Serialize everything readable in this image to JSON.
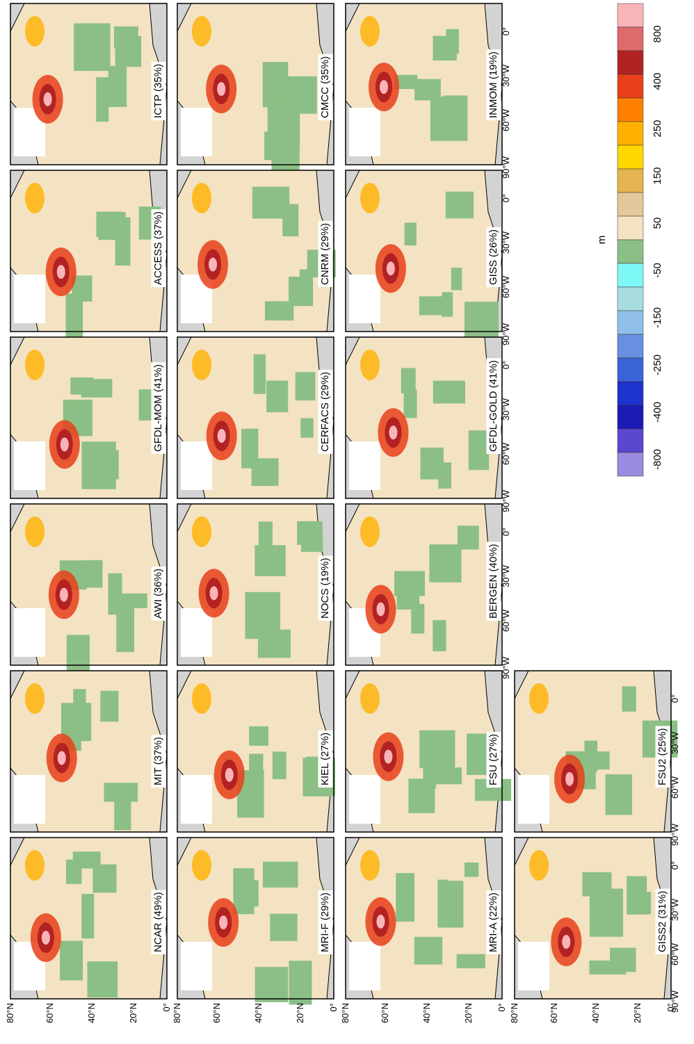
{
  "panels": [
    {
      "label": "ICTP (35%)"
    },
    {
      "label": "ACCESS (37%)"
    },
    {
      "label": "GFDL-MOM (41%)"
    },
    {
      "label": "AWI (36%)"
    },
    {
      "label": "MIT (37%)"
    },
    {
      "label": "NCAR (49%)"
    },
    {
      "label": "CMCC (35%)"
    },
    {
      "label": "CNRM (29%)"
    },
    {
      "label": "CERFACS (29%)"
    },
    {
      "label": "NOCS (19%)"
    },
    {
      "label": "KIEL (27%)"
    },
    {
      "label": "MRI-F (29%)"
    },
    {
      "label": "INMOM (19%)"
    },
    {
      "label": "GISS (26%)"
    },
    {
      "label": "GFDL-GOLD (41%)"
    },
    {
      "label": "BERGEN (40%)"
    },
    {
      "label": "FSU (27%)"
    },
    {
      "label": "MRI-A (22%)"
    },
    {
      "label": "FSU2 (25%)"
    },
    {
      "label": "GISS2 (31%)"
    }
  ],
  "lat_labels": [
    "80°N",
    "60°N",
    "40°N",
    "20°N",
    "0°"
  ],
  "lon_labels": [
    "90°W",
    "60°W",
    "30°W",
    "0°"
  ],
  "colorbar": {
    "unit": "m",
    "labels": [
      "800",
      "400",
      "250",
      "150",
      "50",
      "-50",
      "-150",
      "-250",
      "-400",
      "-800"
    ],
    "colors": [
      "#f9b4b9",
      "#de6b6b",
      "#b22222",
      "#e8401a",
      "#ff7f00",
      "#ffb000",
      "#ffd800",
      "#e6b450",
      "#e3c89b",
      "#f3e3c2",
      "#8cbf85",
      "#7ef7f7",
      "#a8dde0",
      "#90c0e8",
      "#6890e0",
      "#3a64d8",
      "#1e32cc",
      "#1a1ab4",
      "#5a48d0",
      "#9b8be0"
    ]
  }
}
